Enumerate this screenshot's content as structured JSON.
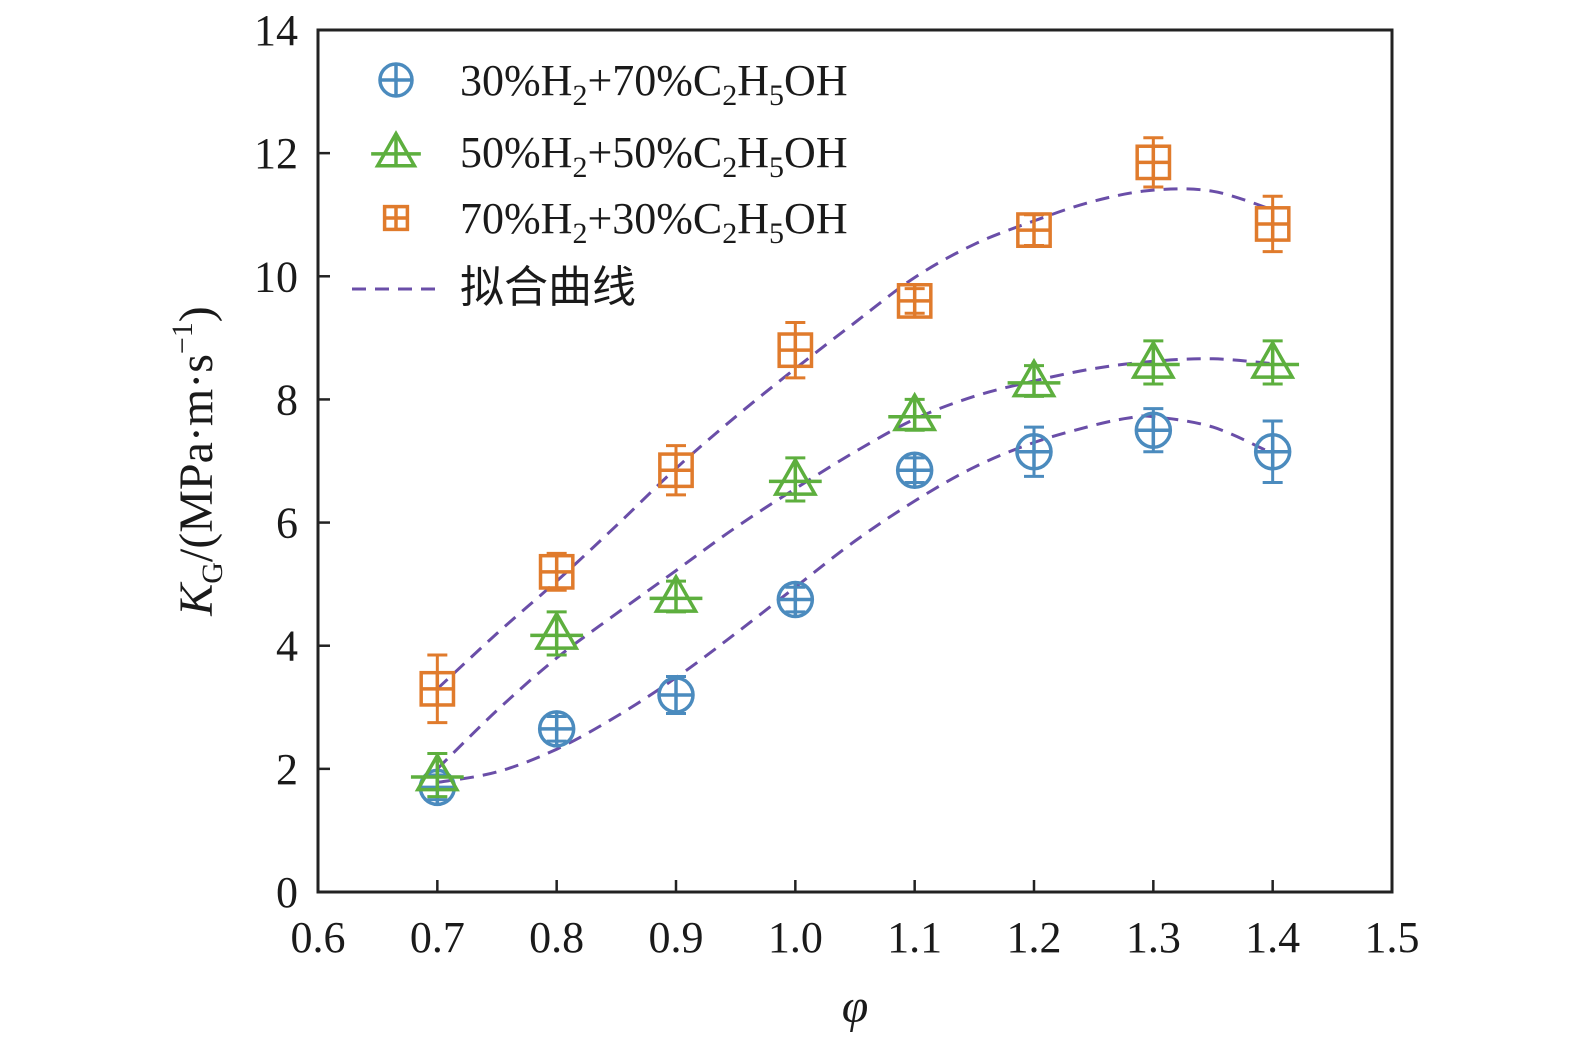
{
  "chart_data": {
    "type": "scatter",
    "xlabel": "φ",
    "ylabel": "K",
    "ylabel_sub": "G",
    "ylabel_units": "/(MPa·m·s",
    "ylabel_sup": "−1",
    "ylabel_close": ")",
    "xlim": [
      0.6,
      1.5
    ],
    "ylim": [
      0,
      14
    ],
    "xticks": [
      0.6,
      0.7,
      0.8,
      0.9,
      1.0,
      1.1,
      1.2,
      1.3,
      1.4,
      1.5
    ],
    "xtick_labels": [
      "0.6",
      "0.7",
      "0.8",
      "0.9",
      "1.0",
      "1.1",
      "1.2",
      "1.3",
      "1.4",
      "1.5"
    ],
    "yticks": [
      0,
      2,
      4,
      6,
      8,
      10,
      12,
      14
    ],
    "ytick_labels": [
      "0",
      "2",
      "4",
      "6",
      "8",
      "10",
      "12",
      "14"
    ],
    "grid": false,
    "legend_position": "top-left",
    "series": [
      {
        "name": "30%H2+70%C2H5OH",
        "label_parts": [
          [
            "30%H",
            ""
          ],
          [
            "2",
            "sub"
          ],
          [
            "+70%C",
            ""
          ],
          [
            "2",
            "sub"
          ],
          [
            "H",
            ""
          ],
          [
            "5",
            "sub"
          ],
          [
            "OH",
            ""
          ]
        ],
        "marker": "circle-plus",
        "color": "#4b8bbe",
        "x": [
          0.7,
          0.8,
          0.9,
          1.0,
          1.1,
          1.2,
          1.3,
          1.4
        ],
        "y": [
          1.7,
          2.65,
          3.2,
          4.75,
          6.85,
          7.15,
          7.5,
          7.15
        ],
        "err": [
          0.2,
          0.2,
          0.3,
          0.2,
          0.2,
          0.4,
          0.35,
          0.5
        ],
        "fit": [
          [
            0.7,
            1.78
          ],
          [
            0.75,
            1.95
          ],
          [
            0.8,
            2.32
          ],
          [
            0.85,
            2.85
          ],
          [
            0.9,
            3.48
          ],
          [
            0.95,
            4.2
          ],
          [
            1.0,
            4.95
          ],
          [
            1.05,
            5.7
          ],
          [
            1.1,
            6.35
          ],
          [
            1.15,
            6.9
          ],
          [
            1.2,
            7.3
          ],
          [
            1.25,
            7.58
          ],
          [
            1.28,
            7.7
          ],
          [
            1.3,
            7.72
          ],
          [
            1.35,
            7.55
          ],
          [
            1.4,
            7.12
          ]
        ]
      },
      {
        "name": "50%H2+50%C2H5OH",
        "label_parts": [
          [
            "50%H",
            ""
          ],
          [
            "2",
            "sub"
          ],
          [
            "+50%C",
            ""
          ],
          [
            "2",
            "sub"
          ],
          [
            "H",
            ""
          ],
          [
            "5",
            "sub"
          ],
          [
            "OH",
            ""
          ]
        ],
        "marker": "triangle-plus",
        "color": "#5daf3e",
        "x": [
          0.7,
          0.8,
          0.9,
          1.0,
          1.1,
          1.2,
          1.3,
          1.4
        ],
        "y": [
          1.9,
          4.2,
          4.8,
          6.7,
          7.75,
          8.3,
          8.6,
          8.6
        ],
        "err": [
          0.35,
          0.35,
          0.25,
          0.35,
          0.25,
          0.25,
          0.35,
          0.35
        ],
        "fit": [
          [
            0.7,
            2.0
          ],
          [
            0.75,
            2.95
          ],
          [
            0.8,
            3.8
          ],
          [
            0.85,
            4.52
          ],
          [
            0.9,
            5.22
          ],
          [
            0.95,
            5.92
          ],
          [
            1.0,
            6.55
          ],
          [
            1.05,
            7.15
          ],
          [
            1.1,
            7.68
          ],
          [
            1.15,
            8.05
          ],
          [
            1.2,
            8.3
          ],
          [
            1.25,
            8.5
          ],
          [
            1.3,
            8.62
          ],
          [
            1.35,
            8.66
          ],
          [
            1.4,
            8.58
          ]
        ]
      },
      {
        "name": "70%H2+30%C2H5OH",
        "label_parts": [
          [
            "70%H",
            ""
          ],
          [
            "2",
            "sub"
          ],
          [
            "+30%C",
            ""
          ],
          [
            "2",
            "sub"
          ],
          [
            "H",
            ""
          ],
          [
            "5",
            "sub"
          ],
          [
            "OH",
            ""
          ]
        ],
        "marker": "square-plus",
        "color": "#e07b2c",
        "x": [
          0.7,
          0.8,
          0.9,
          1.0,
          1.1,
          1.2,
          1.3,
          1.4
        ],
        "y": [
          3.3,
          5.2,
          6.85,
          8.8,
          9.6,
          10.75,
          11.85,
          10.85
        ],
        "err": [
          0.55,
          0.3,
          0.4,
          0.45,
          0.2,
          0.25,
          0.4,
          0.45
        ],
        "fit": [
          [
            0.7,
            3.3
          ],
          [
            0.75,
            4.2
          ],
          [
            0.8,
            5.05
          ],
          [
            0.85,
            5.95
          ],
          [
            0.9,
            6.88
          ],
          [
            0.95,
            7.72
          ],
          [
            1.0,
            8.5
          ],
          [
            1.05,
            9.25
          ],
          [
            1.1,
            9.98
          ],
          [
            1.15,
            10.52
          ],
          [
            1.2,
            10.9
          ],
          [
            1.25,
            11.22
          ],
          [
            1.3,
            11.4
          ],
          [
            1.35,
            11.38
          ],
          [
            1.4,
            11.08
          ]
        ]
      }
    ],
    "fit_legend_label": "拟合曲线",
    "fit_color": "#6a4ea8"
  }
}
